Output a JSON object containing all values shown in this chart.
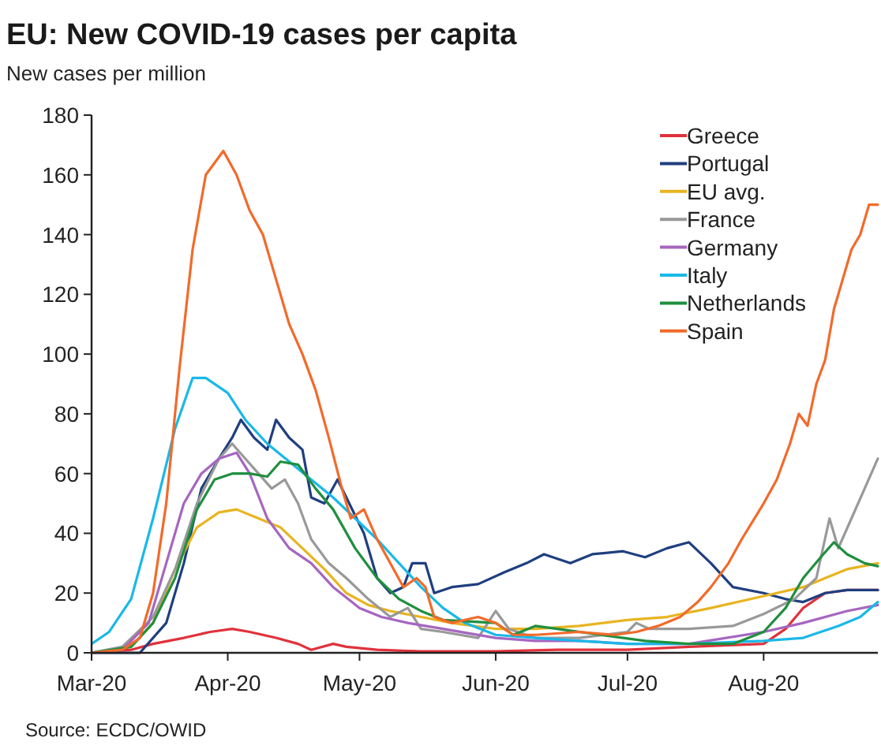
{
  "chart_data": {
    "type": "line",
    "title": "EU: New COVID-19 cases per capita",
    "ylabel": "New cases per million",
    "annotations": [
      "Source: ECDC/OWID"
    ],
    "xlim": [
      "2020-03-01",
      "2020-08-27"
    ],
    "xticks": [
      {
        "value": "2020-03-01",
        "label": "Mar-20"
      },
      {
        "value": "2020-04-01",
        "label": "Apr-20"
      },
      {
        "value": "2020-05-01",
        "label": "May-20"
      },
      {
        "value": "2020-06-01",
        "label": "Jun-20"
      },
      {
        "value": "2020-07-01",
        "label": "Jul-20"
      },
      {
        "value": "2020-08-01",
        "label": "Aug-20"
      }
    ],
    "ylim": [
      0,
      180
    ],
    "yticks": [
      0,
      20,
      40,
      60,
      80,
      100,
      120,
      140,
      160,
      180
    ],
    "grid": false,
    "legend": "top right",
    "line_style": "solid",
    "series": [
      {
        "name": "Greece",
        "color": "#e0323c",
        "x": [
          "2020-03-01",
          "2020-03-10",
          "2020-03-15",
          "2020-03-22",
          "2020-03-28",
          "2020-04-02",
          "2020-04-06",
          "2020-04-12",
          "2020-04-17",
          "2020-04-20",
          "2020-04-25",
          "2020-04-28",
          "2020-05-05",
          "2020-05-15",
          "2020-06-01",
          "2020-06-15",
          "2020-07-01",
          "2020-07-15",
          "2020-08-01",
          "2020-08-06",
          "2020-08-10",
          "2020-08-15",
          "2020-08-20",
          "2020-08-27"
        ],
        "values": [
          0,
          1,
          3,
          5,
          7,
          8,
          7,
          5,
          3,
          1,
          3,
          2,
          1,
          0.5,
          0.5,
          1,
          1,
          2,
          3,
          8,
          15,
          20,
          21,
          21
        ]
      },
      {
        "name": "Portugal",
        "color": "#1f3f7f",
        "x": [
          "2020-03-01",
          "2020-03-12",
          "2020-03-18",
          "2020-03-22",
          "2020-03-26",
          "2020-03-30",
          "2020-04-02",
          "2020-04-04",
          "2020-04-07",
          "2020-04-10",
          "2020-04-12",
          "2020-04-15",
          "2020-04-18",
          "2020-04-20",
          "2020-04-23",
          "2020-04-26",
          "2020-04-28",
          "2020-05-02",
          "2020-05-05",
          "2020-05-08",
          "2020-05-11",
          "2020-05-13",
          "2020-05-16",
          "2020-05-18",
          "2020-05-22",
          "2020-05-28",
          "2020-06-03",
          "2020-06-08",
          "2020-06-12",
          "2020-06-18",
          "2020-06-23",
          "2020-06-30",
          "2020-07-05",
          "2020-07-10",
          "2020-07-15",
          "2020-07-20",
          "2020-07-25",
          "2020-08-01",
          "2020-08-06",
          "2020-08-10",
          "2020-08-15",
          "2020-08-20",
          "2020-08-27"
        ],
        "values": [
          0,
          0,
          10,
          30,
          55,
          65,
          72,
          78,
          72,
          68,
          78,
          72,
          68,
          52,
          50,
          58,
          52,
          40,
          25,
          20,
          22,
          30,
          30,
          20,
          22,
          23,
          27,
          30,
          33,
          30,
          33,
          34,
          32,
          35,
          37,
          30,
          22,
          20,
          18,
          17,
          20,
          21,
          21
        ]
      },
      {
        "name": "EU avg.",
        "color": "#e8b420",
        "x": [
          "2020-03-01",
          "2020-03-10",
          "2020-03-15",
          "2020-03-20",
          "2020-03-25",
          "2020-03-30",
          "2020-04-03",
          "2020-04-08",
          "2020-04-13",
          "2020-04-18",
          "2020-04-23",
          "2020-04-28",
          "2020-05-03",
          "2020-05-08",
          "2020-05-15",
          "2020-05-22",
          "2020-06-01",
          "2020-06-10",
          "2020-06-20",
          "2020-07-01",
          "2020-07-10",
          "2020-07-20",
          "2020-08-01",
          "2020-08-10",
          "2020-08-15",
          "2020-08-20",
          "2020-08-27"
        ],
        "values": [
          0,
          2,
          10,
          28,
          42,
          47,
          48,
          45,
          42,
          35,
          28,
          20,
          16,
          14,
          12,
          10,
          8,
          8,
          9,
          11,
          12,
          15,
          19,
          22,
          25,
          28,
          30
        ]
      },
      {
        "name": "France",
        "color": "#999999",
        "x": [
          "2020-03-01",
          "2020-03-08",
          "2020-03-15",
          "2020-03-20",
          "2020-03-25",
          "2020-03-30",
          "2020-04-02",
          "2020-04-05",
          "2020-04-08",
          "2020-04-11",
          "2020-04-14",
          "2020-04-17",
          "2020-04-20",
          "2020-04-24",
          "2020-04-28",
          "2020-05-03",
          "2020-05-08",
          "2020-05-12",
          "2020-05-15",
          "2020-05-20",
          "2020-05-28",
          "2020-06-01",
          "2020-06-04",
          "2020-06-10",
          "2020-06-20",
          "2020-07-01",
          "2020-07-03",
          "2020-07-06",
          "2020-07-15",
          "2020-07-25",
          "2020-08-01",
          "2020-08-08",
          "2020-08-13",
          "2020-08-16",
          "2020-08-18",
          "2020-08-21",
          "2020-08-24",
          "2020-08-27"
        ],
        "values": [
          0,
          2,
          12,
          28,
          50,
          65,
          70,
          65,
          60,
          55,
          58,
          50,
          38,
          30,
          25,
          18,
          12,
          15,
          8,
          7,
          5,
          14,
          8,
          5,
          5,
          7,
          10,
          8,
          8,
          9,
          13,
          18,
          25,
          45,
          35,
          45,
          55,
          65
        ]
      },
      {
        "name": "Germany",
        "color": "#a666c0",
        "x": [
          "2020-03-01",
          "2020-03-08",
          "2020-03-14",
          "2020-03-18",
          "2020-03-22",
          "2020-03-26",
          "2020-03-30",
          "2020-04-03",
          "2020-04-06",
          "2020-04-10",
          "2020-04-15",
          "2020-04-20",
          "2020-04-25",
          "2020-05-01",
          "2020-05-06",
          "2020-05-12",
          "2020-05-20",
          "2020-06-01",
          "2020-06-10",
          "2020-06-20",
          "2020-07-01",
          "2020-07-15",
          "2020-08-01",
          "2020-08-10",
          "2020-08-20",
          "2020-08-27"
        ],
        "values": [
          0,
          1,
          10,
          30,
          50,
          60,
          65,
          67,
          60,
          45,
          35,
          30,
          22,
          15,
          12,
          10,
          8,
          5,
          4,
          4,
          3,
          3,
          7,
          10,
          14,
          16
        ]
      },
      {
        "name": "Italy",
        "color": "#1ab8e8",
        "x": [
          "2020-03-01",
          "2020-03-05",
          "2020-03-10",
          "2020-03-15",
          "2020-03-20",
          "2020-03-24",
          "2020-03-27",
          "2020-04-01",
          "2020-04-05",
          "2020-04-10",
          "2020-04-15",
          "2020-04-20",
          "2020-04-25",
          "2020-04-30",
          "2020-05-05",
          "2020-05-10",
          "2020-05-15",
          "2020-05-20",
          "2020-05-25",
          "2020-06-01",
          "2020-06-10",
          "2020-06-20",
          "2020-07-01",
          "2020-07-15",
          "2020-08-01",
          "2020-08-10",
          "2020-08-18",
          "2020-08-23",
          "2020-08-27"
        ],
        "values": [
          3,
          7,
          18,
          45,
          75,
          92,
          92,
          87,
          78,
          70,
          64,
          58,
          52,
          45,
          38,
          30,
          22,
          15,
          10,
          6,
          5,
          4,
          3,
          3,
          4,
          5,
          9,
          12,
          17
        ]
      },
      {
        "name": "Netherlands",
        "color": "#1f8f3f",
        "x": [
          "2020-03-01",
          "2020-03-10",
          "2020-03-15",
          "2020-03-20",
          "2020-03-25",
          "2020-03-29",
          "2020-04-02",
          "2020-04-06",
          "2020-04-10",
          "2020-04-13",
          "2020-04-17",
          "2020-04-21",
          "2020-04-25",
          "2020-04-30",
          "2020-05-05",
          "2020-05-10",
          "2020-05-15",
          "2020-05-20",
          "2020-06-01",
          "2020-06-05",
          "2020-06-10",
          "2020-06-15",
          "2020-06-25",
          "2020-07-05",
          "2020-07-15",
          "2020-07-25",
          "2020-08-01",
          "2020-08-06",
          "2020-08-10",
          "2020-08-14",
          "2020-08-17",
          "2020-08-20",
          "2020-08-24",
          "2020-08-27"
        ],
        "values": [
          0,
          2,
          10,
          25,
          48,
          58,
          60,
          60,
          59,
          64,
          63,
          55,
          48,
          35,
          25,
          18,
          14,
          11,
          10,
          6,
          9,
          8,
          6,
          4,
          3,
          3,
          7,
          15,
          25,
          32,
          37,
          33,
          30,
          29
        ]
      },
      {
        "name": "Spain",
        "color": "#f26a2a",
        "x": [
          "2020-03-01",
          "2020-03-08",
          "2020-03-12",
          "2020-03-15",
          "2020-03-18",
          "2020-03-21",
          "2020-03-24",
          "2020-03-27",
          "2020-03-31",
          "2020-04-03",
          "2020-04-06",
          "2020-04-09",
          "2020-04-12",
          "2020-04-15",
          "2020-04-18",
          "2020-04-21",
          "2020-04-24",
          "2020-04-27",
          "2020-04-29",
          "2020-05-02",
          "2020-05-05",
          "2020-05-08",
          "2020-05-11",
          "2020-05-14",
          "2020-05-16",
          "2020-05-18",
          "2020-05-22",
          "2020-05-28",
          "2020-06-01",
          "2020-06-05",
          "2020-06-10",
          "2020-06-20",
          "2020-06-28",
          "2020-07-03",
          "2020-07-08",
          "2020-07-13",
          "2020-07-17",
          "2020-07-20",
          "2020-07-24",
          "2020-07-27",
          "2020-08-01",
          "2020-08-04",
          "2020-08-07",
          "2020-08-09",
          "2020-08-11",
          "2020-08-13",
          "2020-08-15",
          "2020-08-17",
          "2020-08-19",
          "2020-08-21",
          "2020-08-23",
          "2020-08-25",
          "2020-08-27"
        ],
        "values": [
          0,
          1,
          5,
          20,
          50,
          95,
          135,
          160,
          168,
          160,
          148,
          140,
          125,
          110,
          100,
          88,
          72,
          55,
          45,
          48,
          38,
          30,
          22,
          25,
          22,
          12,
          10,
          12,
          10,
          6,
          6,
          7,
          6,
          7,
          9,
          12,
          17,
          22,
          30,
          38,
          50,
          58,
          70,
          80,
          76,
          90,
          98,
          115,
          125,
          135,
          140,
          150,
          150
        ]
      }
    ]
  }
}
